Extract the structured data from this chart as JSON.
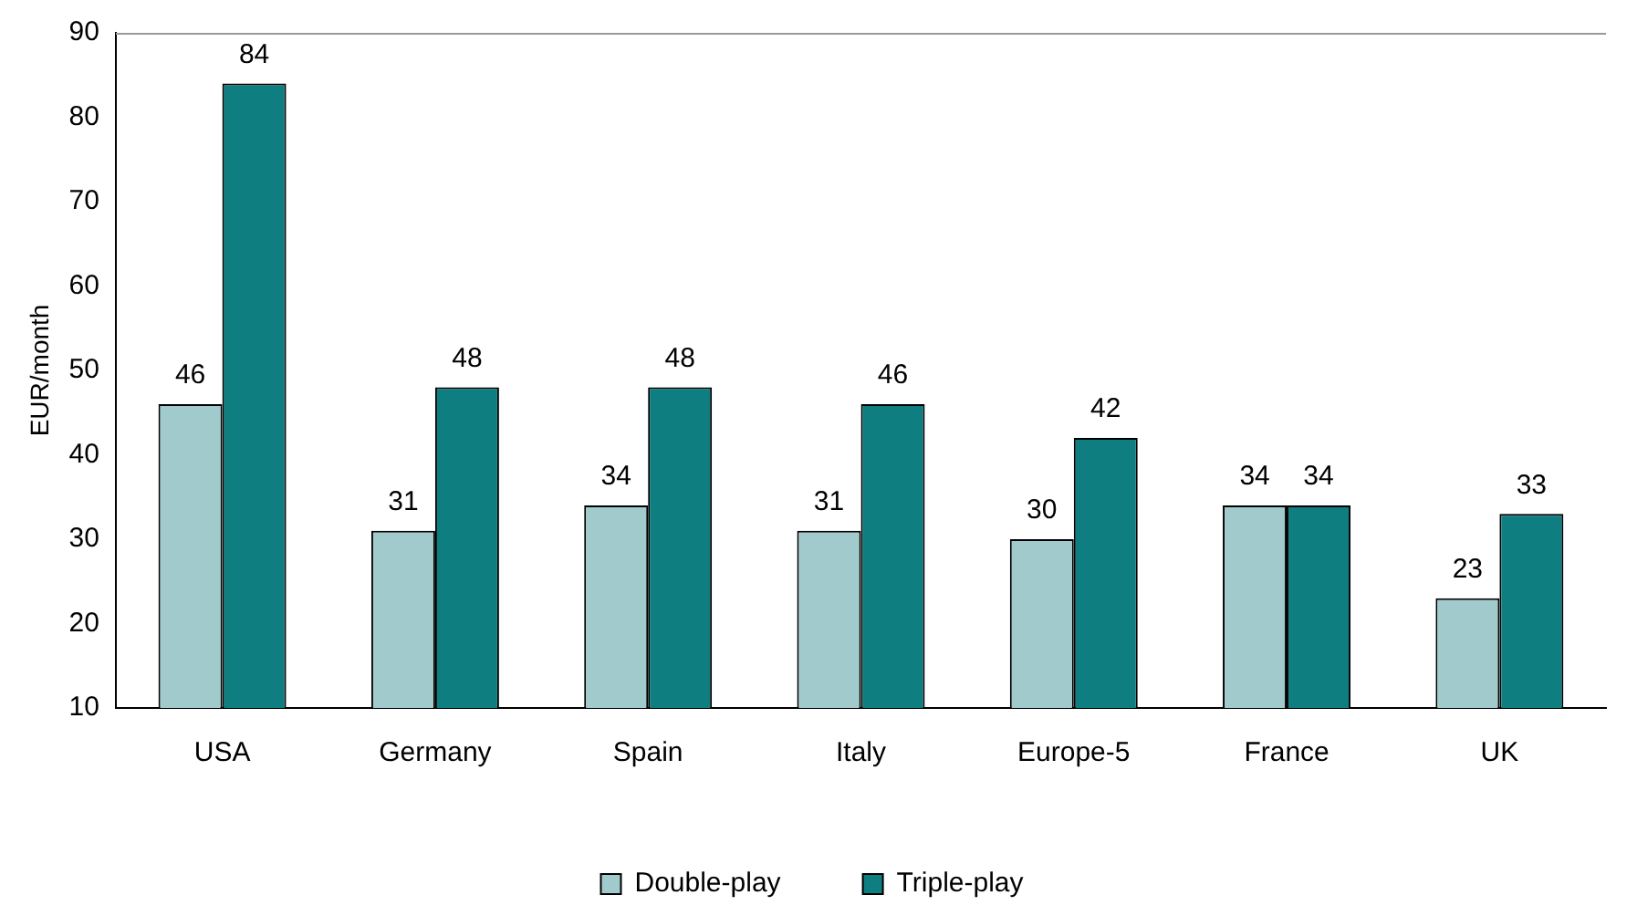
{
  "chart_data": {
    "type": "bar",
    "ylabel": "EUR/month",
    "categories": [
      "USA",
      "Germany",
      "Spain",
      "Italy",
      "Europe-5",
      "France",
      "UK"
    ],
    "series": [
      {
        "name": "Double-play",
        "color": "#a0cacb",
        "values": [
          46,
          31,
          34,
          31,
          30,
          34,
          23
        ]
      },
      {
        "name": "Triple-play",
        "color": "#0f7e80",
        "values": [
          84,
          48,
          48,
          46,
          42,
          34,
          33
        ]
      }
    ],
    "ylim": [
      10,
      90
    ],
    "yticks": [
      10,
      20,
      30,
      40,
      50,
      60,
      70,
      80,
      90
    ],
    "grid": false,
    "legend": "bottom",
    "data_labels": true
  }
}
